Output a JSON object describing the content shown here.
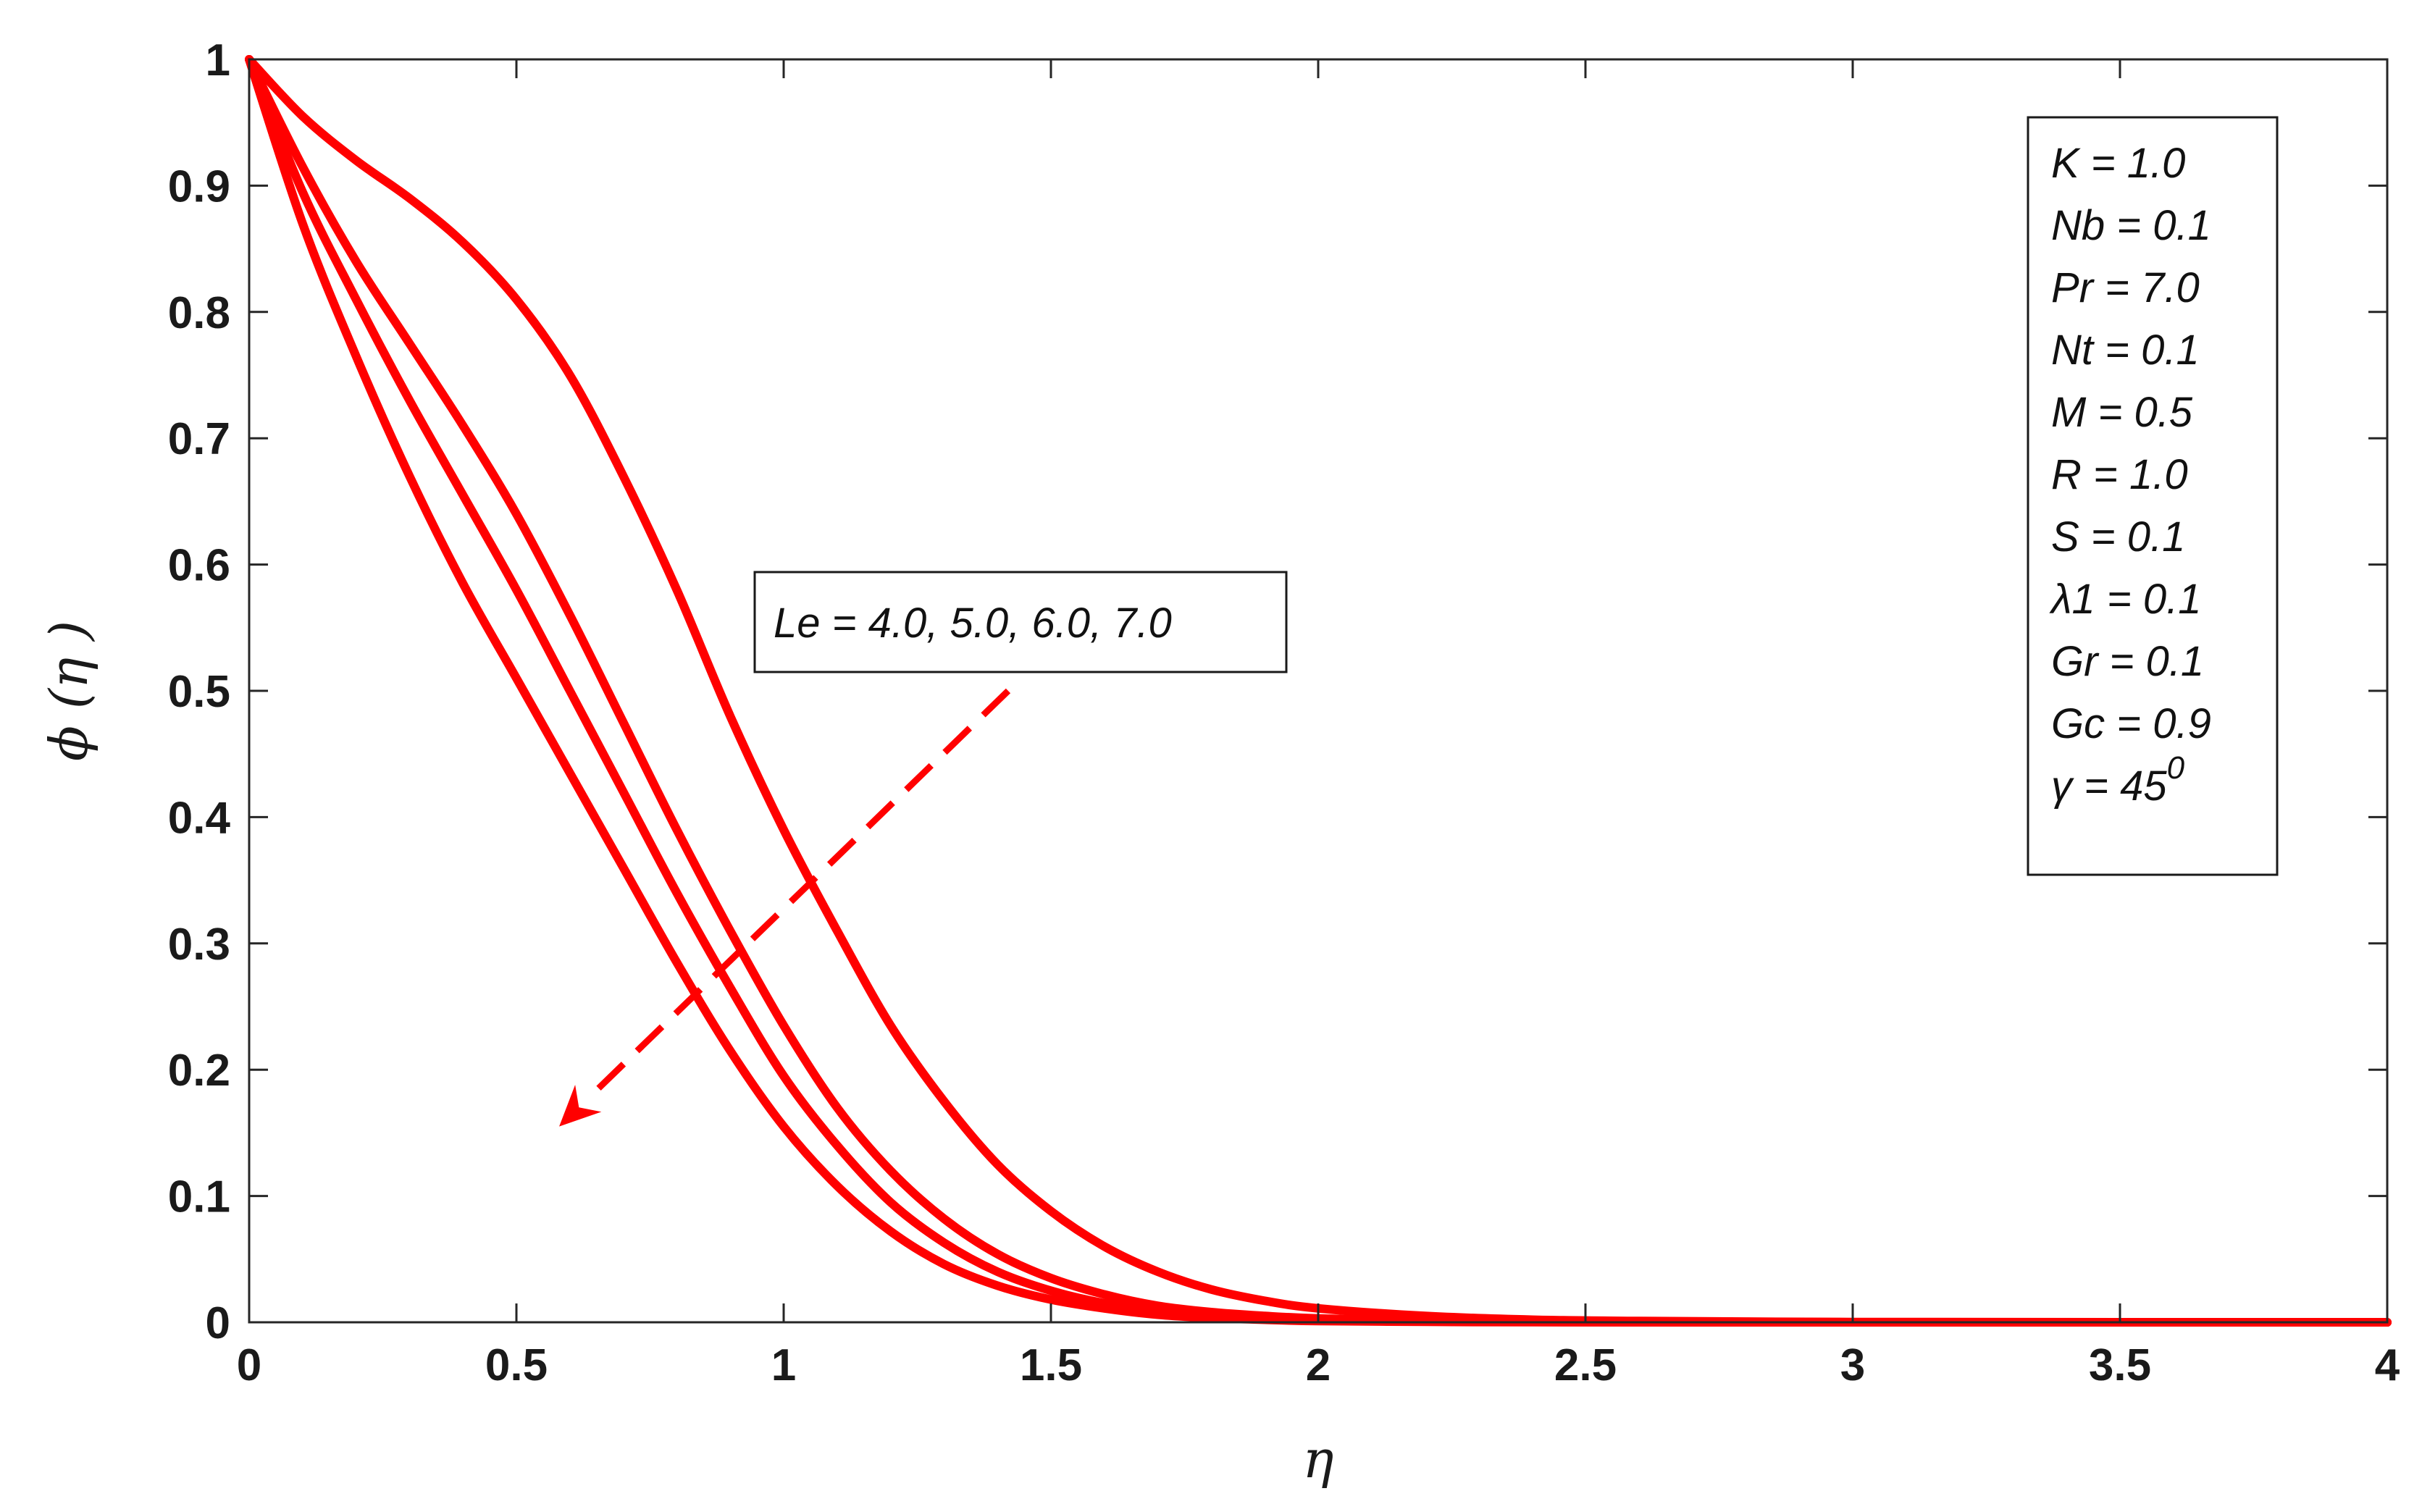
{
  "chart_data": {
    "type": "line",
    "xlabel": "η",
    "ylabel": "ϕ (η )",
    "xlim": [
      0,
      4
    ],
    "ylim": [
      0,
      1
    ],
    "xticks": [
      "0",
      "0.5",
      "1",
      "1.5",
      "2",
      "2.5",
      "3",
      "3.5",
      "4"
    ],
    "yticks": [
      "0",
      "0.1",
      "0.2",
      "0.3",
      "0.4",
      "0.5",
      "0.6",
      "0.7",
      "0.8",
      "0.9",
      "1"
    ],
    "grid": false,
    "line_color": "#ff0000",
    "series": [
      {
        "x": [
          0,
          0.1,
          0.2,
          0.3,
          0.4,
          0.5,
          0.6,
          0.7,
          0.8,
          0.9,
          1.0,
          1.1,
          1.2,
          1.3,
          1.4,
          1.5,
          1.6,
          1.7,
          1.8,
          1.9,
          2.0,
          2.2,
          2.4,
          2.6,
          2.8,
          3.0,
          3.5,
          4.0
        ],
        "values": [
          1.0,
          0.955,
          0.92,
          0.89,
          0.855,
          0.81,
          0.75,
          0.67,
          0.58,
          0.48,
          0.39,
          0.31,
          0.235,
          0.175,
          0.125,
          0.088,
          0.06,
          0.04,
          0.026,
          0.017,
          0.011,
          0.005,
          0.002,
          0.001,
          0.0005,
          0.0002,
          0.0,
          0.0
        ]
      },
      {
        "x": [
          0,
          0.1,
          0.2,
          0.3,
          0.4,
          0.5,
          0.6,
          0.7,
          0.8,
          0.9,
          1.0,
          1.1,
          1.2,
          1.3,
          1.4,
          1.5,
          1.6,
          1.7,
          1.8,
          1.9,
          2.0,
          2.2,
          2.4,
          2.6,
          3.0,
          3.5,
          4.0
        ],
        "values": [
          1.0,
          0.915,
          0.84,
          0.775,
          0.71,
          0.64,
          0.56,
          0.475,
          0.39,
          0.31,
          0.235,
          0.17,
          0.12,
          0.082,
          0.054,
          0.035,
          0.022,
          0.013,
          0.008,
          0.005,
          0.003,
          0.001,
          0.0004,
          0.0002,
          0.0,
          0.0,
          0.0
        ]
      },
      {
        "x": [
          0,
          0.1,
          0.2,
          0.3,
          0.4,
          0.5,
          0.6,
          0.7,
          0.8,
          0.9,
          1.0,
          1.1,
          1.2,
          1.3,
          1.4,
          1.5,
          1.6,
          1.7,
          1.8,
          1.9,
          2.0,
          2.2,
          2.4,
          3.0,
          3.5,
          4.0
        ],
        "values": [
          1.0,
          0.895,
          0.81,
          0.73,
          0.655,
          0.58,
          0.5,
          0.42,
          0.34,
          0.265,
          0.195,
          0.14,
          0.095,
          0.063,
          0.04,
          0.025,
          0.015,
          0.009,
          0.005,
          0.003,
          0.002,
          0.0007,
          0.0003,
          0.0,
          0.0,
          0.0
        ]
      },
      {
        "x": [
          0,
          0.1,
          0.2,
          0.3,
          0.4,
          0.5,
          0.6,
          0.7,
          0.8,
          0.9,
          1.0,
          1.1,
          1.2,
          1.3,
          1.4,
          1.5,
          1.6,
          1.7,
          1.8,
          1.9,
          2.0,
          2.2,
          2.4,
          3.0,
          3.5,
          4.0
        ],
        "values": [
          1.0,
          0.87,
          0.765,
          0.67,
          0.585,
          0.51,
          0.435,
          0.36,
          0.285,
          0.215,
          0.155,
          0.108,
          0.072,
          0.046,
          0.029,
          0.018,
          0.011,
          0.006,
          0.0035,
          0.002,
          0.001,
          0.0004,
          0.0001,
          0.0,
          0.0,
          0.0
        ]
      }
    ],
    "annotation": {
      "text": "Le = 4.0, 5.0, 6.0, 7.0",
      "arrow_from": [
        1.42,
        0.5
      ],
      "arrow_to": [
        0.58,
        0.155
      ]
    },
    "parameters": {
      "lines": [
        {
          "name": "K",
          "value": "1.0"
        },
        {
          "name": "Nb",
          "value": "0.1"
        },
        {
          "name": "Pr",
          "value": "7.0"
        },
        {
          "name": "Nt",
          "value": "0.1"
        },
        {
          "name": "M",
          "value": "0.5"
        },
        {
          "name": "R",
          "value": "1.0"
        },
        {
          "name": "S",
          "value": "0.1"
        },
        {
          "name": "λ1",
          "value": "0.1"
        },
        {
          "name": "Gr",
          "value": "0.1"
        },
        {
          "name": "Gc",
          "value": "0.9"
        },
        {
          "name": "γ",
          "value": "45",
          "sup": "0"
        }
      ]
    }
  }
}
